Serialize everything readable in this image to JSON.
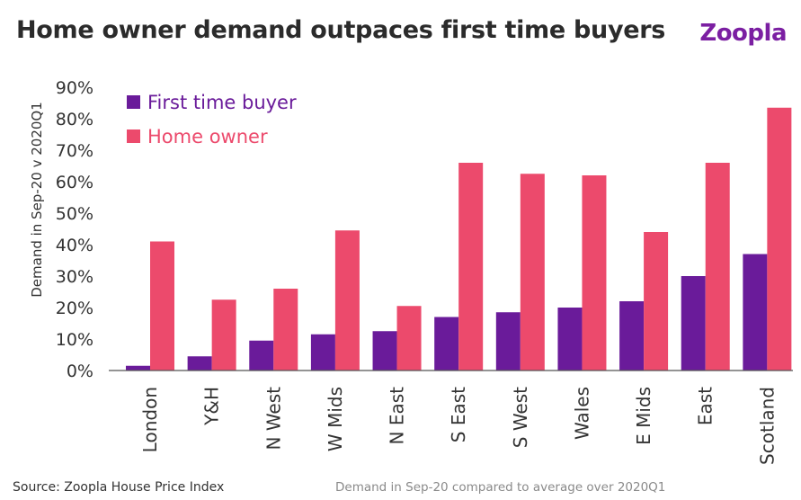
{
  "header": {
    "title": "Home owner demand outpaces first time buyers",
    "logo": "Zoopla"
  },
  "footer": {
    "source": "Source: Zoopla House Price Index",
    "note": "Demand in Sep-20 compared to average over 2020Q1"
  },
  "colors": {
    "first_time_buyer": "#6a1b9a",
    "home_owner": "#ec4a6c",
    "logo": "#7b1fa2"
  },
  "chart_data": {
    "type": "bar",
    "title": "Home owner demand outpaces first time buyers",
    "xlabel": "",
    "ylabel": "Demand in Sep-20 v 2020Q1",
    "ylim": [
      0,
      90
    ],
    "yticks": [
      "0%",
      "10%",
      "20%",
      "30%",
      "40%",
      "50%",
      "60%",
      "70%",
      "80%",
      "90%"
    ],
    "ytick_values": [
      0,
      10,
      20,
      30,
      40,
      50,
      60,
      70,
      80,
      90
    ],
    "legend_position": "top-left",
    "grid": false,
    "categories": [
      "London",
      "Y&H",
      "N West",
      "W Mids",
      "N East",
      "S East",
      "S West",
      "Wales",
      "E Mids",
      "East",
      "Scotland"
    ],
    "series": [
      {
        "name": "First time buyer",
        "values": [
          1.5,
          4.5,
          9.5,
          11.5,
          12.5,
          17,
          18.5,
          20,
          22,
          30,
          37
        ]
      },
      {
        "name": "Home owner",
        "values": [
          41,
          22.5,
          26,
          44.5,
          20.5,
          66,
          62.5,
          62,
          44,
          66,
          83.5
        ]
      }
    ]
  }
}
